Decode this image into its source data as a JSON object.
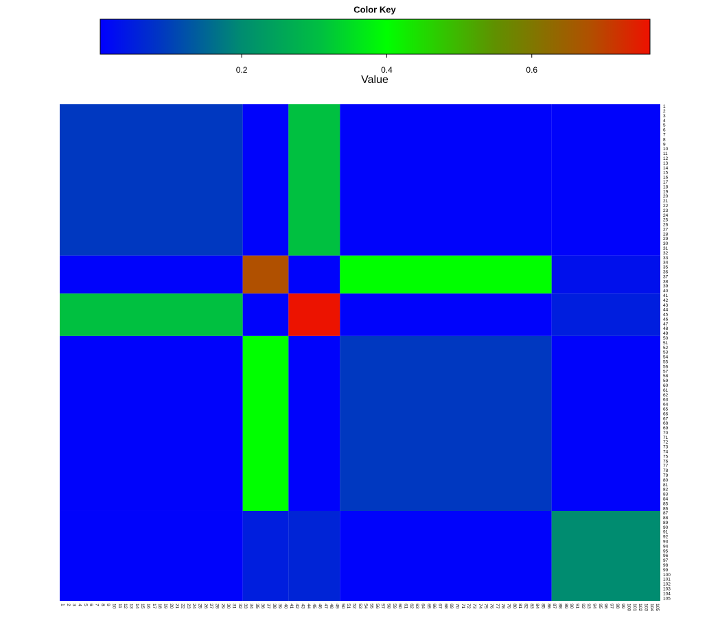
{
  "chart_data": {
    "type": "heatmap",
    "title": "Color Key",
    "xlabel": "Value",
    "xlim": [
      0.005,
      0.763
    ],
    "xticks": [
      0.2,
      0.4,
      0.6
    ],
    "colormap": [
      [
        0.005,
        "#0000ff"
      ],
      [
        0.09,
        "#0038c0"
      ],
      [
        0.2,
        "#008c70"
      ],
      [
        0.31,
        "#00c040"
      ],
      [
        0.4,
        "#00ff00"
      ],
      [
        0.55,
        "#609000"
      ],
      [
        0.68,
        "#b05000"
      ],
      [
        0.763,
        "#ee1100"
      ]
    ],
    "row_labels": [
      1,
      2,
      3,
      4,
      5,
      6,
      7,
      8,
      9,
      10,
      11,
      12,
      13,
      14,
      15,
      16,
      17,
      18,
      19,
      20,
      21,
      22,
      23,
      24,
      25,
      26,
      27,
      28,
      29,
      30,
      31,
      32,
      33,
      34,
      35,
      36,
      37,
      38,
      39,
      40,
      41,
      42,
      43,
      44,
      45,
      46,
      47,
      48,
      49,
      50,
      51,
      52,
      53,
      54,
      55,
      56,
      57,
      58,
      59,
      60,
      61,
      62,
      63,
      64,
      65,
      66,
      67,
      68,
      69,
      70,
      71,
      72,
      73,
      74,
      75,
      76,
      77,
      78,
      79,
      80,
      81,
      82,
      83,
      84,
      85,
      86,
      87,
      88,
      89,
      90,
      91,
      92,
      93,
      94,
      95,
      96,
      97,
      98,
      99,
      100,
      101,
      102,
      103,
      104,
      105
    ],
    "col_labels": [
      1,
      2,
      3,
      4,
      5,
      6,
      7,
      8,
      9,
      10,
      11,
      12,
      13,
      14,
      15,
      16,
      17,
      18,
      19,
      20,
      21,
      22,
      23,
      24,
      25,
      26,
      27,
      28,
      29,
      30,
      31,
      32,
      33,
      34,
      35,
      36,
      37,
      38,
      39,
      40,
      41,
      42,
      43,
      44,
      45,
      46,
      47,
      48,
      49,
      50,
      51,
      52,
      53,
      54,
      55,
      56,
      57,
      58,
      59,
      60,
      61,
      62,
      63,
      64,
      65,
      66,
      67,
      68,
      69,
      70,
      71,
      72,
      73,
      74,
      75,
      76,
      77,
      78,
      79,
      80,
      81,
      82,
      83,
      84,
      85,
      86,
      87,
      88,
      89,
      90,
      91,
      92,
      93,
      94,
      95,
      96,
      97,
      98,
      99,
      100,
      101,
      102,
      103,
      104,
      105
    ],
    "row_groups": [
      [
        1,
        32
      ],
      [
        33,
        40
      ],
      [
        41,
        49
      ],
      [
        50,
        86
      ],
      [
        87,
        105
      ]
    ],
    "col_groups": [
      [
        1,
        32
      ],
      [
        33,
        40
      ],
      [
        41,
        49
      ],
      [
        50,
        86
      ],
      [
        87,
        105
      ]
    ],
    "values": [
      [
        0.09,
        0.01,
        0.31,
        0.01,
        0.01
      ],
      [
        0.01,
        0.68,
        0.01,
        0.4,
        0.03
      ],
      [
        0.31,
        0.01,
        0.76,
        0.01,
        0.05
      ],
      [
        0.01,
        0.4,
        0.01,
        0.09,
        0.01
      ],
      [
        0.01,
        0.05,
        0.06,
        0.01,
        0.2
      ]
    ]
  }
}
